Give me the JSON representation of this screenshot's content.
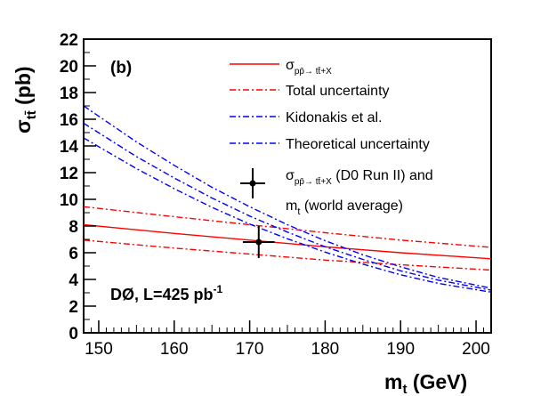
{
  "chart_data": {
    "type": "line",
    "xlabel_main": "m",
    "xlabel_sub": "t",
    "xlabel_unit": " (GeV)",
    "ylabel_main": "σ",
    "ylabel_sub": "tt̄",
    "ylabel_unit": " (pb)",
    "panel_label": "(b)",
    "annotation": "DØ, L=425 pb",
    "annotation_sup": "-1",
    "xlim": [
      148,
      202
    ],
    "ylim": [
      0,
      22
    ],
    "x_ticks": [
      150,
      160,
      170,
      180,
      190,
      200
    ],
    "y_ticks": [
      0,
      2,
      4,
      6,
      8,
      10,
      12,
      14,
      16,
      18,
      20,
      22
    ],
    "legend_position": "top-right",
    "legend": [
      {
        "main": "σ",
        "sub": "pp̄→ tt̄+X",
        "rest": "",
        "style": "red-solid"
      },
      {
        "main": "Total uncertainty",
        "sub": "",
        "rest": "",
        "style": "red-dashdot"
      },
      {
        "main": "Kidonakis et al.",
        "sub": "",
        "rest": "",
        "style": "blue-dashdot"
      },
      {
        "main": "Theoretical uncertainty",
        "sub": "",
        "rest": "",
        "style": "blue-dashdot"
      },
      {
        "main": "σ",
        "sub": "pp̄→ tt̄+X",
        "rest": " (D0 Run II) and",
        "style": "marker"
      },
      {
        "main": "m",
        "sub": "t",
        "rest": " (world average)",
        "style": "none"
      }
    ],
    "series": [
      {
        "color": "#ff0000",
        "dash": "",
        "x": [
          148,
          160,
          170,
          180,
          190,
          202
        ],
        "y": [
          8.1,
          7.45,
          6.95,
          6.45,
          6.0,
          5.55
        ]
      },
      {
        "color": "#ff0000",
        "dash": "7,3,2,3",
        "x": [
          148,
          160,
          170,
          180,
          190,
          202
        ],
        "y": [
          9.45,
          8.7,
          8.1,
          7.5,
          6.95,
          6.4
        ]
      },
      {
        "color": "#ff0000",
        "dash": "7,3,2,3",
        "x": [
          148,
          160,
          170,
          180,
          190,
          202
        ],
        "y": [
          6.95,
          6.35,
          5.9,
          5.45,
          5.1,
          4.7
        ]
      },
      {
        "color": "#0000ff",
        "dash": "7,3,2,3",
        "x": [
          148,
          155,
          160,
          165,
          170,
          175,
          180,
          185,
          190,
          195,
          202
        ],
        "y": [
          15.7,
          13.2,
          11.6,
          10.1,
          8.75,
          7.55,
          6.45,
          5.5,
          4.65,
          3.95,
          3.2
        ]
      },
      {
        "color": "#0000ff",
        "dash": "7,3,2,3",
        "x": [
          148,
          155,
          160,
          165,
          170,
          175,
          180,
          185,
          190,
          195,
          202
        ],
        "y": [
          17.0,
          14.3,
          12.55,
          10.9,
          9.45,
          8.1,
          6.9,
          5.85,
          4.95,
          4.15,
          3.35
        ]
      },
      {
        "color": "#0000ff",
        "dash": "7,3,2,3",
        "x": [
          148,
          155,
          160,
          165,
          170,
          175,
          180,
          185,
          190,
          195,
          202
        ],
        "y": [
          14.6,
          12.3,
          10.8,
          9.4,
          8.15,
          7.05,
          6.05,
          5.15,
          4.35,
          3.7,
          3.05
        ]
      }
    ],
    "measurement": {
      "x": 171.2,
      "y": 6.8,
      "xerr": 2.1,
      "yerr": 1.2
    }
  }
}
